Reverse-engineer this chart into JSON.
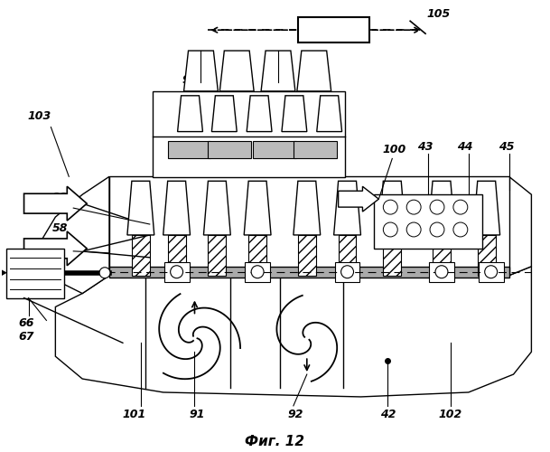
{
  "title": "Фиг. 12",
  "background": "#ffffff",
  "lw": 1.0
}
